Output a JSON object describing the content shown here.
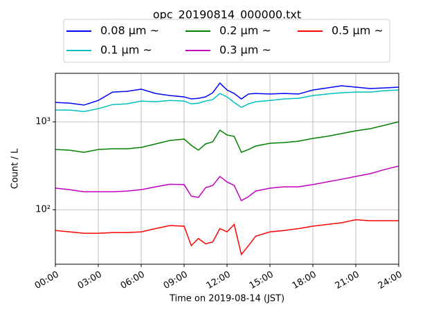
{
  "chart_data": {
    "type": "line",
    "title": "opc_20190814_000000.txt",
    "x_label": "Time on 2019-08-14 (JST)",
    "y_label": "Count / L",
    "log_y": true,
    "grid": true,
    "legend": "top",
    "x": [
      0,
      1,
      2,
      3,
      4,
      5,
      6,
      7,
      8,
      9,
      9.5,
      10,
      10.5,
      11,
      11.5,
      12,
      12.5,
      13,
      13.5,
      14,
      15,
      16,
      17,
      18,
      19,
      20,
      21,
      22,
      23,
      24
    ],
    "xlim": [
      0,
      24
    ],
    "xticks": [
      {
        "value": 0,
        "label": "00:00"
      },
      {
        "value": 3,
        "label": "03:00"
      },
      {
        "value": 6,
        "label": "06:00"
      },
      {
        "value": 9,
        "label": "09:00"
      },
      {
        "value": 12,
        "label": "12:00"
      },
      {
        "value": 15,
        "label": "15:00"
      },
      {
        "value": 18,
        "label": "18:00"
      },
      {
        "value": 21,
        "label": "21:00"
      },
      {
        "value": 24,
        "label": "24:00"
      }
    ],
    "ylim": [
      24,
      3560
    ],
    "yticks": [
      {
        "value": 100,
        "label": "10²"
      },
      {
        "value": 1000,
        "label": "10³"
      }
    ],
    "series": [
      {
        "name": "0.08 μm ~",
        "color": "#0000ff",
        "values": [
          1660,
          1630,
          1550,
          1750,
          2180,
          2220,
          2350,
          2100,
          1990,
          1920,
          1820,
          1850,
          1920,
          2140,
          2760,
          2300,
          2100,
          1820,
          2070,
          2100,
          2070,
          2100,
          2070,
          2300,
          2430,
          2570,
          2480,
          2390,
          2430,
          2480
        ]
      },
      {
        "name": "0.1 μm ~",
        "color": "#00bfbf",
        "values": [
          1360,
          1360,
          1310,
          1410,
          1570,
          1600,
          1720,
          1690,
          1750,
          1720,
          1600,
          1630,
          1720,
          1790,
          2100,
          1920,
          1660,
          1460,
          1600,
          1690,
          1750,
          1820,
          1850,
          1990,
          2070,
          2140,
          2180,
          2180,
          2260,
          2300
        ]
      },
      {
        "name": "0.2 μm ~",
        "color": "#008000",
        "values": [
          484,
          476,
          450,
          484,
          493,
          493,
          511,
          560,
          613,
          636,
          540,
          476,
          560,
          592,
          804,
          708,
          683,
          450,
          484,
          530,
          570,
          580,
          602,
          647,
          683,
          735,
          790,
          834,
          913,
          1000
        ]
      },
      {
        "name": "0.3 μm ~",
        "color": "#bf00bf",
        "values": [
          176,
          169,
          160,
          160,
          160,
          163,
          169,
          182,
          195,
          193,
          143,
          138,
          178,
          189,
          239,
          207,
          189,
          127,
          141,
          163,
          176,
          182,
          182,
          193,
          207,
          222,
          239,
          257,
          286,
          314
        ]
      },
      {
        "name": "0.5 μm ~",
        "color": "#ff0000",
        "values": [
          58,
          56,
          54,
          54,
          55,
          55,
          56,
          61,
          66,
          65,
          39,
          47,
          41,
          43,
          61,
          56,
          68,
          31,
          39,
          50,
          56,
          58,
          61,
          65,
          68,
          71,
          77,
          75,
          75,
          75
        ]
      }
    ]
  }
}
